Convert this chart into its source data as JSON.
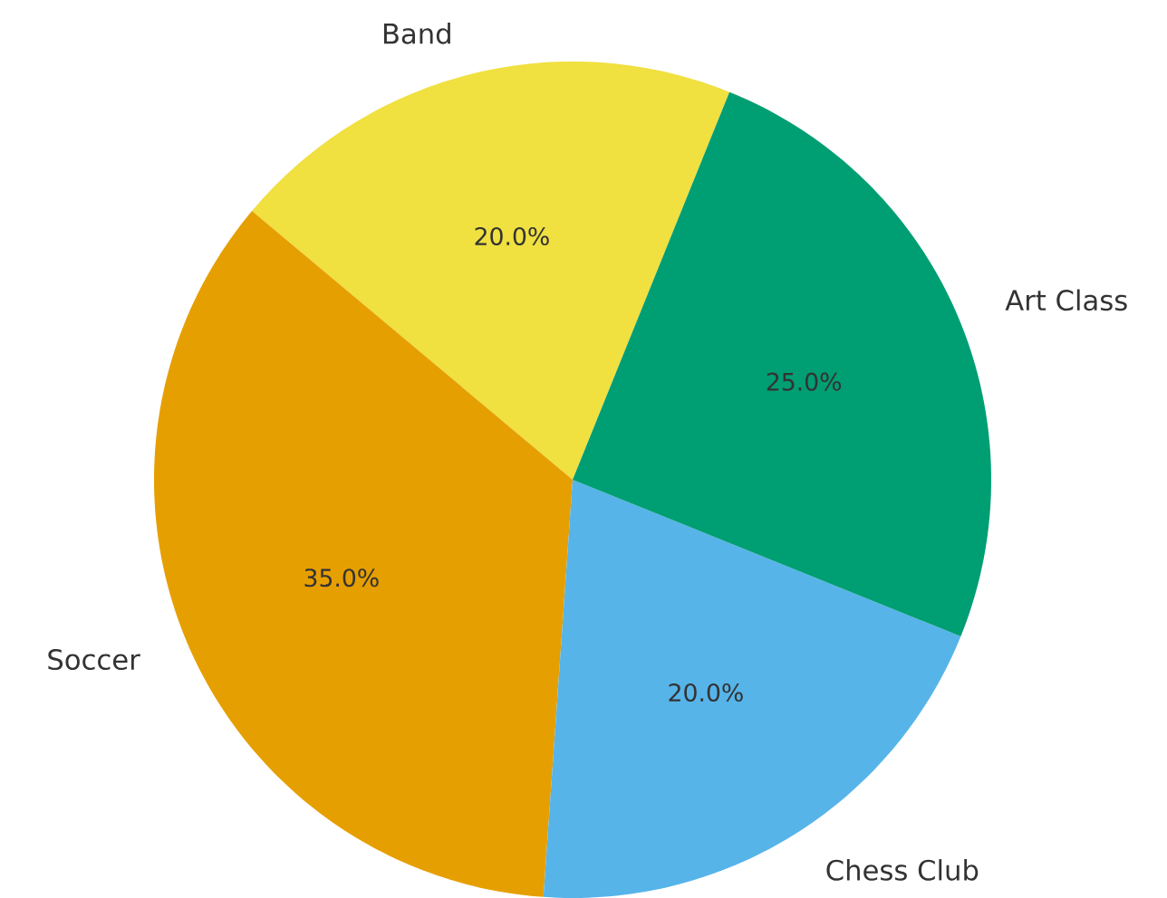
{
  "chart_data": {
    "type": "pie",
    "categories": [
      "Band",
      "Soccer",
      "Chess Club",
      "Art Class"
    ],
    "values": [
      20,
      35,
      20,
      25
    ],
    "value_labels": [
      "20.0%",
      "35.0%",
      "20.0%",
      "25.0%"
    ],
    "colors": [
      "#f0e040",
      "#e69f00",
      "#56b4e9",
      "#009e73"
    ]
  }
}
